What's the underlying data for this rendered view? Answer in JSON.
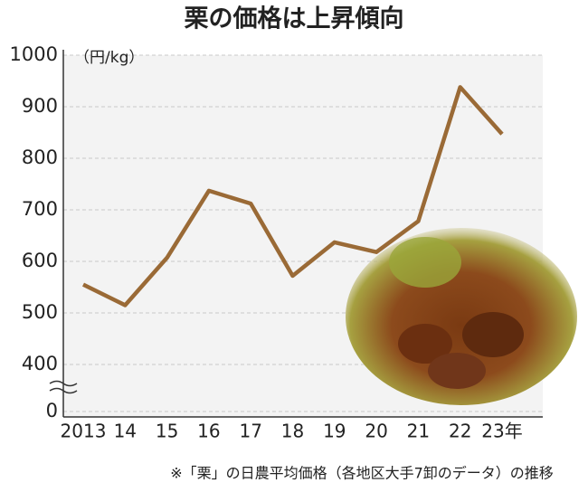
{
  "chart_data": {
    "type": "line",
    "title": "栗の価格は上昇傾向",
    "y_label": "（円/kg）",
    "note": "※「栗」の日農平均価格（各地区大手7卸のデータ）の推移",
    "categories": [
      "2013",
      "14",
      "15",
      "16",
      "17",
      "18",
      "19",
      "20",
      "21",
      "22",
      "23年"
    ],
    "values": [
      555,
      515,
      607,
      737,
      712,
      572,
      637,
      618,
      678,
      938,
      847
    ],
    "color": "#9a6a36",
    "ylim": [
      0,
      1000
    ],
    "axis_break": [
      0,
      400
    ],
    "yticks": [
      0,
      400,
      500,
      600,
      700,
      800,
      900,
      1000
    ],
    "grid": true
  }
}
